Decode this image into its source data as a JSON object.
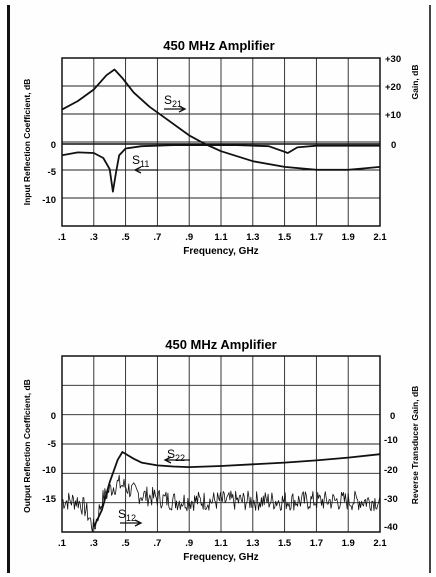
{
  "chart_data": [
    {
      "type": "line",
      "title": "450 MHz Amplifier",
      "xlabel": "Frequency, GHz",
      "ylabel_left": "Input Reflection Coefficient, dB",
      "ylabel_right": "Gain, dB",
      "xlim": [
        0.1,
        2.1
      ],
      "ylim_left": [
        -15,
        10
      ],
      "ylim_right": [
        -30,
        30
      ],
      "x_ticks": [
        ".1",
        ".3",
        ".5",
        ".7",
        ".9",
        "1.1",
        "1.3",
        "1.5",
        "1.7",
        "1.9",
        "2.1"
      ],
      "y_ticks_left": [
        "0",
        "-5",
        "-10"
      ],
      "y_ticks_right": [
        "+30",
        "+20",
        "+10",
        "0"
      ],
      "grid": true,
      "series": [
        {
          "name": "S21",
          "axis": "right",
          "x": [
            0.1,
            0.2,
            0.3,
            0.38,
            0.43,
            0.48,
            0.55,
            0.65,
            0.75,
            0.9,
            1.0,
            1.1,
            1.3,
            1.5,
            1.7,
            1.9,
            2.0,
            2.1
          ],
          "y": [
            12,
            15,
            19,
            24,
            26,
            23,
            18,
            13,
            9,
            3,
            0,
            -2.5,
            -6,
            -8,
            -9,
            -9,
            -8.5,
            -8
          ]
        },
        {
          "name": "S11",
          "axis": "left",
          "x": [
            0.1,
            0.2,
            0.3,
            0.36,
            0.4,
            0.42,
            0.44,
            0.46,
            0.5,
            0.6,
            0.8,
            1.0,
            1.2,
            1.4,
            1.48,
            1.52,
            1.58,
            1.7,
            2.1
          ],
          "y": [
            -2,
            -1.5,
            -1.6,
            -2.5,
            -4.5,
            -8.5,
            -5,
            -2,
            -0.8,
            -0.4,
            -0.2,
            -0.2,
            -0.2,
            -0.4,
            -1.2,
            -1.6,
            -0.6,
            -0.3,
            -0.3
          ]
        }
      ],
      "annotations": [
        "S21",
        "S11"
      ]
    },
    {
      "type": "line",
      "title": "450 MHz Amplifier",
      "xlabel": "Frequency, GHz",
      "ylabel_left": "Output Reflection Coefficient, dB",
      "ylabel_right": "Reverse Transducer Gain, dB",
      "xlim": [
        0.1,
        2.1
      ],
      "ylim_left": [
        -20,
        10
      ],
      "ylim_right": [
        -40,
        10
      ],
      "x_ticks": [
        ".1",
        ".3",
        ".5",
        ".7",
        ".9",
        "1.1",
        "1.3",
        "1.5",
        "1.7",
        "1.9",
        "2.1"
      ],
      "y_ticks_left": [
        "0",
        "-5",
        "-10",
        "-15"
      ],
      "y_ticks_right": [
        "0",
        "-10",
        "-20",
        "-30",
        "-40"
      ],
      "grid": true,
      "series": [
        {
          "name": "S22",
          "axis": "left",
          "x": [
            0.3,
            0.35,
            0.4,
            0.45,
            0.48,
            0.55,
            0.6,
            0.7,
            0.8,
            0.9,
            1.1,
            1.3,
            1.5,
            1.7,
            1.9,
            2.1
          ],
          "y": [
            -20,
            -17,
            -12,
            -8,
            -6.6,
            -7.8,
            -8.5,
            -9,
            -9.2,
            -9.3,
            -9.1,
            -8.8,
            -8.5,
            -8.1,
            -7.6,
            -7.0
          ]
        },
        {
          "name": "S12",
          "axis": "right",
          "x": [
            0.1,
            0.2,
            0.25,
            0.3,
            0.35,
            0.4,
            0.45,
            0.5,
            0.55,
            0.6,
            0.7,
            0.8,
            1.0,
            1.5,
            2.1
          ],
          "y": [
            -30,
            -30,
            -33,
            -40,
            -30,
            -26,
            -24,
            -25,
            -27,
            -28,
            -29,
            -30,
            -30,
            -30,
            -30
          ]
        }
      ],
      "annotations": [
        "S22",
        "S12"
      ]
    }
  ]
}
